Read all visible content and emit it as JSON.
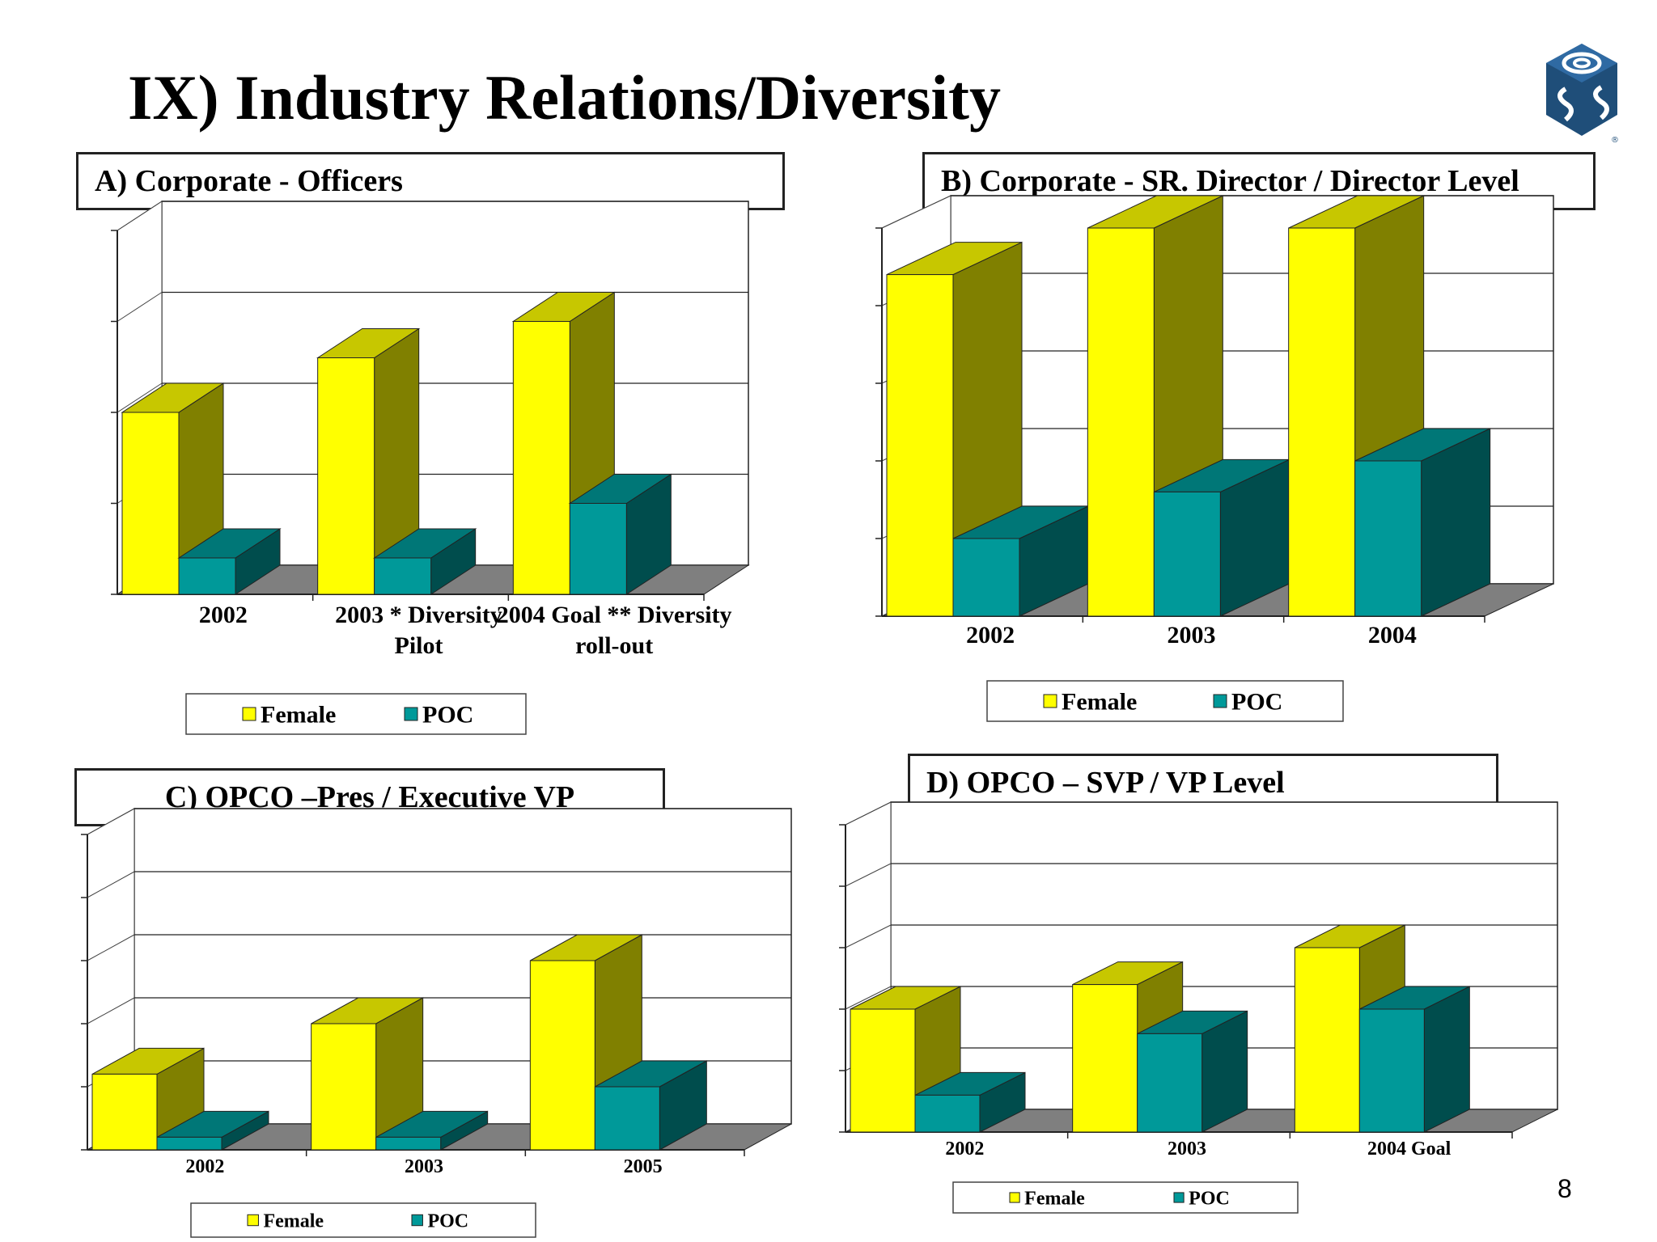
{
  "slide": {
    "title": "IX) Industry Relations/Diversity",
    "page_number": "8"
  },
  "panels": {
    "A": {
      "title": "A)   Corporate - Officers"
    },
    "B": {
      "title": "B)  Corporate -  SR. Director / Director Level"
    },
    "C": {
      "title": "C) OPCO –Pres /  Executive VP"
    },
    "D": {
      "title": "D) OPCO – SVP / VP Level"
    }
  },
  "colors": {
    "female": "#FFFF00",
    "poc": "#009999",
    "floor": "#7f7f7f"
  },
  "chart_data": [
    {
      "id": "A",
      "type": "bar",
      "categories": [
        [
          "2002"
        ],
        [
          "2003 *  Diversity",
          "Pilot"
        ],
        [
          "2004  Goal ** Diversity",
          "roll-out"
        ]
      ],
      "series": [
        {
          "name": "Female",
          "values": [
            2.0,
            2.6,
            3.0
          ]
        },
        {
          "name": "POC",
          "values": [
            0.4,
            0.4,
            1.0
          ]
        }
      ],
      "ylim": [
        0,
        4
      ],
      "grid": true,
      "legend_position": "bottom"
    },
    {
      "id": "B",
      "type": "bar",
      "categories": [
        [
          "2002"
        ],
        [
          "2003"
        ],
        [
          "2004"
        ]
      ],
      "series": [
        {
          "name": "Female",
          "values": [
            4.4,
            5.0,
            5.0
          ]
        },
        {
          "name": "POC",
          "values": [
            1.0,
            1.6,
            2.0
          ]
        }
      ],
      "ylim": [
        0,
        5
      ],
      "grid": true,
      "legend_position": "bottom"
    },
    {
      "id": "C",
      "type": "bar",
      "categories": [
        [
          "2002"
        ],
        [
          "2003"
        ],
        [
          "2005"
        ]
      ],
      "series": [
        {
          "name": "Female",
          "values": [
            1.2,
            2.0,
            3.0
          ]
        },
        {
          "name": "POC",
          "values": [
            0.2,
            0.2,
            1.0
          ]
        }
      ],
      "ylim": [
        0,
        5
      ],
      "grid": true,
      "legend_position": "bottom"
    },
    {
      "id": "D",
      "type": "bar",
      "categories": [
        [
          "2002"
        ],
        [
          "2003"
        ],
        [
          "2004 Goal"
        ]
      ],
      "series": [
        {
          "name": "Female",
          "values": [
            2.0,
            2.4,
            3.0
          ]
        },
        {
          "name": "POC",
          "values": [
            0.6,
            1.6,
            2.0
          ]
        }
      ],
      "ylim": [
        0,
        5
      ],
      "grid": true,
      "legend_position": "bottom"
    }
  ]
}
